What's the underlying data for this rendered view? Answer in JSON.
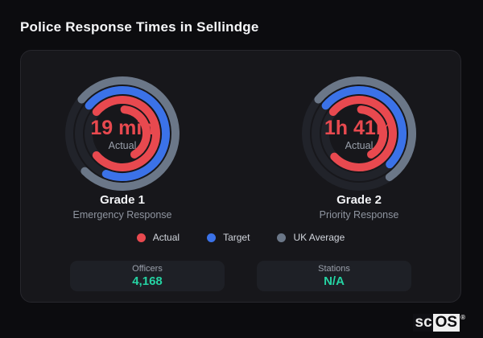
{
  "page": {
    "title": "Police Response Times in Sellindge"
  },
  "colors": {
    "background": "#0c0c0f",
    "panel": "#17171b",
    "panel_border": "#27272d",
    "ring_track": "#21232a",
    "actual": "#e8494f",
    "target": "#3b72e8",
    "uk_average": "#6b7788",
    "stat_value": "#25d3a3",
    "text_primary": "#f5f6f8",
    "text_muted": "#9aa0ab"
  },
  "chart_data": [
    {
      "type": "radial-gauge",
      "title": "Grade 1",
      "subtitle": "Emergency Response",
      "center_value": "19 min",
      "center_label": "Actual",
      "start_deg": -50,
      "rings": [
        {
          "name": "UK Average",
          "color": "#6b7788",
          "radius": 66,
          "sweep_deg": 275
        },
        {
          "name": "Target",
          "color": "#3b72e8",
          "radius": 54,
          "sweep_deg": 252
        },
        {
          "name": "Actual",
          "color": "#e8494f",
          "radius": 42,
          "sweep_deg": 280,
          "overflow": {
            "radius": 30,
            "from_deg": 5,
            "to_deg": 150
          }
        }
      ]
    },
    {
      "type": "radial-gauge",
      "title": "Grade 2",
      "subtitle": "Priority Response",
      "center_value": "1h 41m",
      "center_label": "Actual",
      "start_deg": -50,
      "rings": [
        {
          "name": "UK Average",
          "color": "#6b7788",
          "radius": 66,
          "sweep_deg": 195
        },
        {
          "name": "Target",
          "color": "#3b72e8",
          "radius": 54,
          "sweep_deg": 185
        },
        {
          "name": "Actual",
          "color": "#e8494f",
          "radius": 42,
          "sweep_deg": 277,
          "overflow": {
            "radius": 30,
            "from_deg": 5,
            "to_deg": 150
          }
        }
      ]
    }
  ],
  "legend": {
    "items": [
      {
        "label": "Actual",
        "color": "#e8494f"
      },
      {
        "label": "Target",
        "color": "#3b72e8"
      },
      {
        "label": "UK Average",
        "color": "#6b7788"
      }
    ]
  },
  "stats": [
    {
      "label": "Officers",
      "value": "4,168"
    },
    {
      "label": "Stations",
      "value": "N/A"
    }
  ],
  "watermark": {
    "prefix": "sc",
    "box": "OS",
    "reg": "®"
  }
}
